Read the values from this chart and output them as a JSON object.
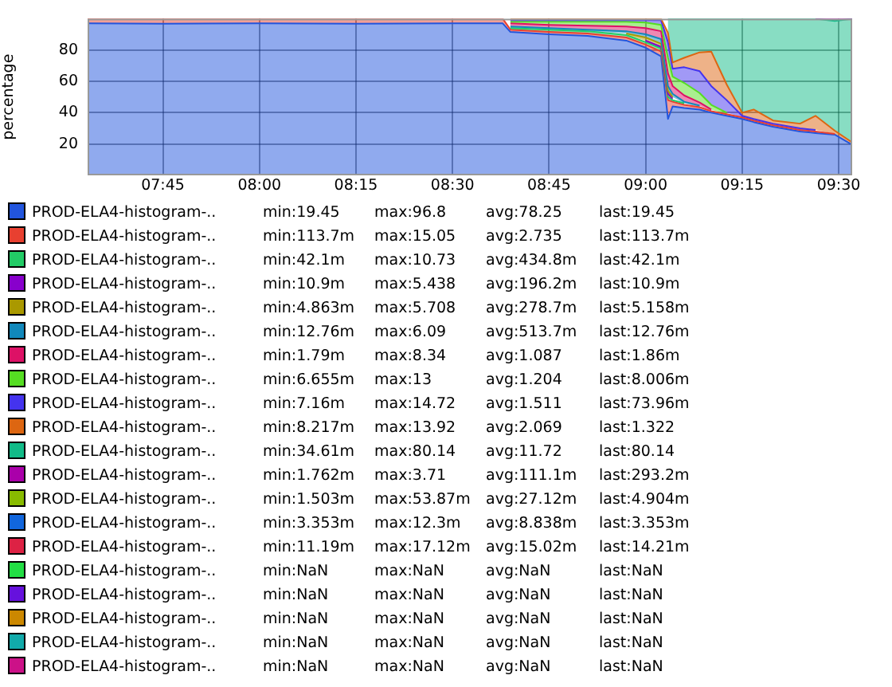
{
  "chart_data": {
    "type": "area",
    "stacked": true,
    "ylabel": "percentage",
    "legend": "bottom",
    "grid": true,
    "xlim": [
      7.555,
      9.535
    ],
    "xticks": [
      {
        "value": 7.75,
        "label": "07:45"
      },
      {
        "value": 8,
        "label": "08:00"
      },
      {
        "value": 8.25,
        "label": "08:15"
      },
      {
        "value": 8.5,
        "label": "08:30"
      },
      {
        "value": 8.75,
        "label": "08:45"
      },
      {
        "value": 9,
        "label": "09:00"
      },
      {
        "value": 9.25,
        "label": "09:15"
      },
      {
        "value": 9.5,
        "label": "09:30"
      }
    ],
    "ylim": [
      0,
      100
    ],
    "yticks": [
      20,
      40,
      60,
      80
    ],
    "x": [
      7.555,
      7.75,
      8.0,
      8.25,
      8.5,
      8.63,
      8.65,
      8.75,
      8.85,
      8.95,
      9.0,
      9.04,
      9.058,
      9.07,
      9.1,
      9.14,
      9.17,
      9.21,
      9.25,
      9.28,
      9.33,
      9.4,
      9.44,
      9.49,
      9.535
    ],
    "series": [
      {
        "name": "PROD-ELA4-histogram-..",
        "color": "#2255dd",
        "values": [
          97,
          96.8,
          97,
          96.8,
          97,
          97,
          91.5,
          90,
          89,
          86,
          81.5,
          76,
          36,
          44,
          43,
          42,
          40,
          38,
          36,
          34,
          31,
          28,
          27,
          26,
          19.5
        ]
      },
      {
        "name": "PROD-ELA4-histogram-..",
        "color": "#e84030",
        "values": [
          3,
          3.2,
          3,
          3.2,
          3,
          3,
          1.5,
          1.5,
          1.5,
          2,
          2,
          3,
          12,
          3,
          2,
          1.5,
          1,
          1,
          1,
          1,
          1,
          1,
          1,
          0.5,
          null
        ]
      },
      {
        "name": "PROD-ELA4-histogram-..",
        "color": "#22cc66",
        "values": [
          null,
          null,
          null,
          null,
          null,
          null,
          1,
          1.5,
          1.5,
          1.5,
          1.5,
          2,
          2,
          1,
          1,
          null,
          null,
          null,
          null,
          null,
          null,
          null,
          null,
          null,
          null
        ]
      },
      {
        "name": "PROD-ELA4-histogram-..",
        "color": "#8800cc",
        "values": [
          null,
          null,
          null,
          null,
          null,
          null,
          null,
          null,
          null,
          null,
          1,
          1,
          2,
          1,
          null,
          null,
          null,
          null,
          null,
          null,
          null,
          null,
          null,
          null,
          null
        ]
      },
      {
        "name": "PROD-ELA4-histogram-..",
        "color": "#aa9900",
        "values": [
          null,
          null,
          null,
          null,
          null,
          null,
          null,
          null,
          null,
          1,
          2,
          2,
          2,
          1,
          null,
          null,
          null,
          null,
          null,
          null,
          null,
          null,
          null,
          null,
          null
        ]
      },
      {
        "name": "PROD-ELA4-histogram-..",
        "color": "#1188bb",
        "values": [
          null,
          null,
          null,
          null,
          null,
          null,
          1,
          1,
          1,
          1.5,
          2,
          3,
          3,
          2,
          1,
          1,
          null,
          null,
          null,
          null,
          null,
          null,
          null,
          null,
          null
        ]
      },
      {
        "name": "PROD-ELA4-histogram-..",
        "color": "#dd1166",
        "values": [
          null,
          null,
          null,
          null,
          null,
          null,
          2,
          2,
          2.5,
          3,
          4,
          5,
          8,
          5,
          4,
          2,
          1,
          null,
          null,
          null,
          null,
          null,
          null,
          null,
          null
        ]
      },
      {
        "name": "PROD-ELA4-histogram-..",
        "color": "#55dd22",
        "values": [
          null,
          null,
          null,
          null,
          null,
          null,
          1,
          2,
          2.5,
          3,
          3.5,
          4,
          10,
          6,
          8,
          6,
          3,
          1,
          null,
          null,
          null,
          null,
          null,
          null,
          null
        ]
      },
      {
        "name": "PROD-ELA4-histogram-..",
        "color": "#4433ee",
        "values": [
          null,
          null,
          null,
          null,
          null,
          null,
          1,
          1,
          1,
          1,
          1.5,
          3,
          10,
          5,
          10,
          14,
          12,
          8,
          1,
          1,
          1,
          1,
          1,
          null,
          null
        ]
      },
      {
        "name": "PROD-ELA4-histogram-..",
        "color": "#dd6611",
        "values": [
          null,
          null,
          null,
          null,
          null,
          null,
          1,
          1,
          1,
          1,
          1,
          1,
          6,
          4,
          6,
          12,
          22,
          10,
          2,
          6,
          2,
          3,
          9,
          2,
          1.5
        ]
      },
      {
        "name": "PROD-ELA4-histogram-..",
        "color": "#11bb88",
        "values": [
          null,
          null,
          null,
          null,
          null,
          null,
          null,
          null,
          null,
          null,
          null,
          null,
          9,
          28,
          25,
          21.5,
          21,
          42,
          60,
          58,
          65,
          67,
          62,
          70,
          79
        ]
      },
      {
        "name": "PROD-ELA4-histogram-..",
        "color": "#aa00aa",
        "values": [
          null,
          null,
          null,
          null,
          null,
          null,
          null,
          null,
          null,
          null,
          null,
          null,
          null,
          null,
          null,
          null,
          null,
          null,
          null,
          null,
          null,
          null,
          0,
          1.5,
          0
        ]
      },
      {
        "name": "PROD-ELA4-histogram-..",
        "color": "#88bb00",
        "values": [
          null,
          null,
          null,
          null,
          null,
          null,
          null,
          null,
          null,
          null,
          null,
          null,
          null,
          null,
          null,
          null,
          null,
          null,
          null,
          null,
          null,
          null,
          null,
          null,
          null
        ]
      },
      {
        "name": "PROD-ELA4-histogram-..",
        "color": "#1166dd",
        "values": [
          null,
          null,
          null,
          null,
          null,
          null,
          null,
          null,
          null,
          null,
          null,
          null,
          null,
          null,
          null,
          null,
          null,
          null,
          null,
          null,
          null,
          null,
          null,
          null,
          null
        ]
      },
      {
        "name": "PROD-ELA4-histogram-..",
        "color": "#dd2244",
        "values": [
          null,
          null,
          null,
          null,
          null,
          null,
          null,
          null,
          null,
          null,
          null,
          null,
          null,
          null,
          null,
          null,
          null,
          null,
          null,
          null,
          null,
          null,
          null,
          null,
          null
        ]
      },
      {
        "name": "PROD-ELA4-histogram-..",
        "color": "#22dd44",
        "values": [
          null,
          null,
          null,
          null,
          null,
          null,
          null,
          null,
          null,
          null,
          null,
          null,
          null,
          null,
          null,
          null,
          null,
          null,
          null,
          null,
          null,
          null,
          null,
          null,
          null
        ]
      },
      {
        "name": "PROD-ELA4-histogram-..",
        "color": "#6611dd",
        "values": [
          null,
          null,
          null,
          null,
          null,
          null,
          null,
          null,
          null,
          null,
          null,
          null,
          null,
          null,
          null,
          null,
          null,
          null,
          null,
          null,
          null,
          null,
          null,
          null,
          null
        ]
      },
      {
        "name": "PROD-ELA4-histogram-..",
        "color": "#cc8800",
        "values": [
          null,
          null,
          null,
          null,
          null,
          null,
          null,
          null,
          null,
          null,
          null,
          null,
          null,
          null,
          null,
          null,
          null,
          null,
          null,
          null,
          null,
          null,
          null,
          null,
          null
        ]
      },
      {
        "name": "PROD-ELA4-histogram-..",
        "color": "#11aaaa",
        "values": [
          null,
          null,
          null,
          null,
          null,
          null,
          null,
          null,
          null,
          null,
          null,
          null,
          null,
          null,
          null,
          null,
          null,
          null,
          null,
          null,
          null,
          null,
          null,
          null,
          null
        ]
      },
      {
        "name": "PROD-ELA4-histogram-..",
        "color": "#cc1188",
        "values": [
          null,
          null,
          null,
          null,
          null,
          null,
          null,
          null,
          null,
          null,
          null,
          null,
          null,
          null,
          null,
          null,
          null,
          null,
          null,
          null,
          null,
          null,
          null,
          null,
          null
        ]
      }
    ],
    "annotations": [
      "min:19.45",
      "max:96.8",
      "avg:78.25",
      "last:19.45",
      "min:113.7m",
      "max:15.05",
      "avg:2.735",
      "last:113.7m",
      "min:42.1m",
      "max:10.73",
      "avg:434.8m",
      "last:42.1m",
      "min:10.9m",
      "max:5.438",
      "avg:196.2m",
      "last:10.9m",
      "min:4.863m",
      "max:5.708",
      "avg:278.7m",
      "last:5.158m",
      "min:12.76m",
      "max:6.09",
      "avg:513.7m",
      "last:12.76m",
      "min:1.79m",
      "max:8.34",
      "avg:1.087",
      "last:1.86m",
      "min:6.655m",
      "max:13",
      "avg:1.204",
      "last:8.006m",
      "min:7.16m",
      "max:14.72",
      "avg:1.511",
      "last:73.96m",
      "min:8.217m",
      "max:13.92",
      "avg:2.069",
      "last:1.322",
      "min:34.61m",
      "max:80.14",
      "avg:11.72",
      "last:80.14",
      "min:1.762m",
      "max:3.71",
      "avg:111.1m",
      "last:293.2m",
      "min:1.503m",
      "max:53.87m",
      "avg:27.12m",
      "last:4.904m",
      "min:3.353m",
      "max:12.3m",
      "avg:8.838m",
      "last:3.353m",
      "min:11.19m",
      "max:17.12m",
      "avg:15.02m",
      "last:14.21m",
      "min:NaN",
      "max:NaN",
      "avg:NaN",
      "last:NaN",
      "min:NaN",
      "max:NaN",
      "avg:NaN",
      "last:NaN",
      "min:NaN",
      "max:NaN",
      "avg:NaN",
      "last:NaN",
      "min:NaN",
      "max:NaN",
      "avg:NaN",
      "last:NaN",
      "min:NaN",
      "max:NaN",
      "avg:NaN",
      "last:NaN"
    ]
  }
}
